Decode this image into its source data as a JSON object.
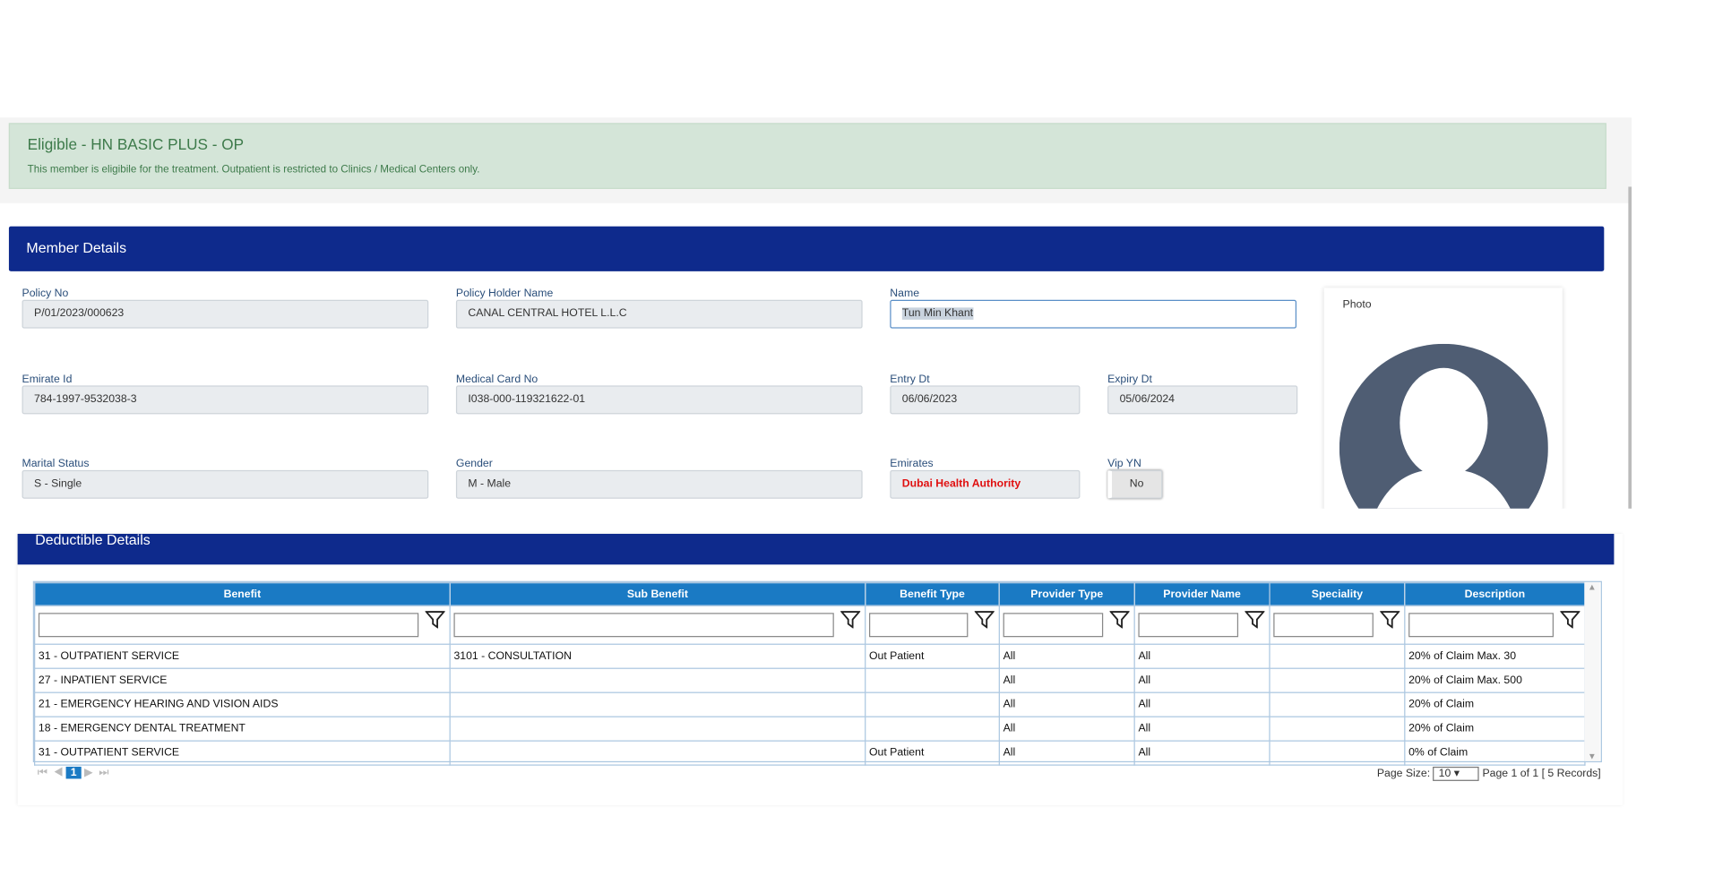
{
  "banner": {
    "title": "Eligible - HN BASIC PLUS - OP",
    "message": "This member is eligibile for the treatment. Outpatient is restricted to Clinics / Medical Centers only."
  },
  "member": {
    "title": "Member Details",
    "photo_label": "Photo",
    "fields": [
      {
        "label": "Policy No",
        "value": "P/01/2023/000623"
      },
      {
        "label": "Policy Holder Name",
        "value": "CANAL CENTRAL HOTEL L.L.C"
      },
      {
        "label": "Name",
        "value": "Tun Min  Khant"
      },
      {
        "label": "Emirate Id",
        "value": "784-1997-9532038-3"
      },
      {
        "label": "Medical Card No",
        "value": "I038-000-119321622-01"
      },
      {
        "label": "Entry Dt",
        "value": "06/06/2023"
      },
      {
        "label": "Expiry Dt",
        "value": "05/06/2024"
      },
      {
        "label": "Marital Status",
        "value": "S - Single"
      },
      {
        "label": "Gender",
        "value": "M - Male"
      },
      {
        "label": "Emirates",
        "value": "Dubai Health Authority"
      },
      {
        "label": "Vip YN",
        "value": "No"
      }
    ]
  },
  "deductible": {
    "title": "Deductible Details",
    "table": {
      "headers": [
        "Benefit",
        "Sub Benefit",
        "Benefit Type",
        "Provider Type",
        "Provider Name",
        "Speciality",
        "Description"
      ],
      "rows": [
        [
          "31 - OUTPATIENT SERVICE",
          "3101 - CONSULTATION",
          "Out Patient",
          "All",
          "All",
          null,
          "20% of Claim Max. 30"
        ],
        [
          "27 - INPATIENT SERVICE",
          null,
          null,
          "All",
          "All",
          null,
          "20% of Claim Max. 500"
        ],
        [
          "21 - EMERGENCY HEARING AND VISION AIDS",
          null,
          null,
          "All",
          "All",
          null,
          "20% of Claim"
        ],
        [
          "18 - EMERGENCY DENTAL TREATMENT",
          null,
          null,
          "All",
          "All",
          null,
          "20% of Claim"
        ],
        [
          "31 - OUTPATIENT SERVICE",
          null,
          "Out Patient",
          "All",
          "All",
          null,
          "0% of Claim"
        ]
      ]
    },
    "pager": {
      "current_page": "1",
      "page_size_label": "Page Size:",
      "page_size": "10",
      "summary": "Page 1 of 1 [ 5 Records]"
    }
  }
}
